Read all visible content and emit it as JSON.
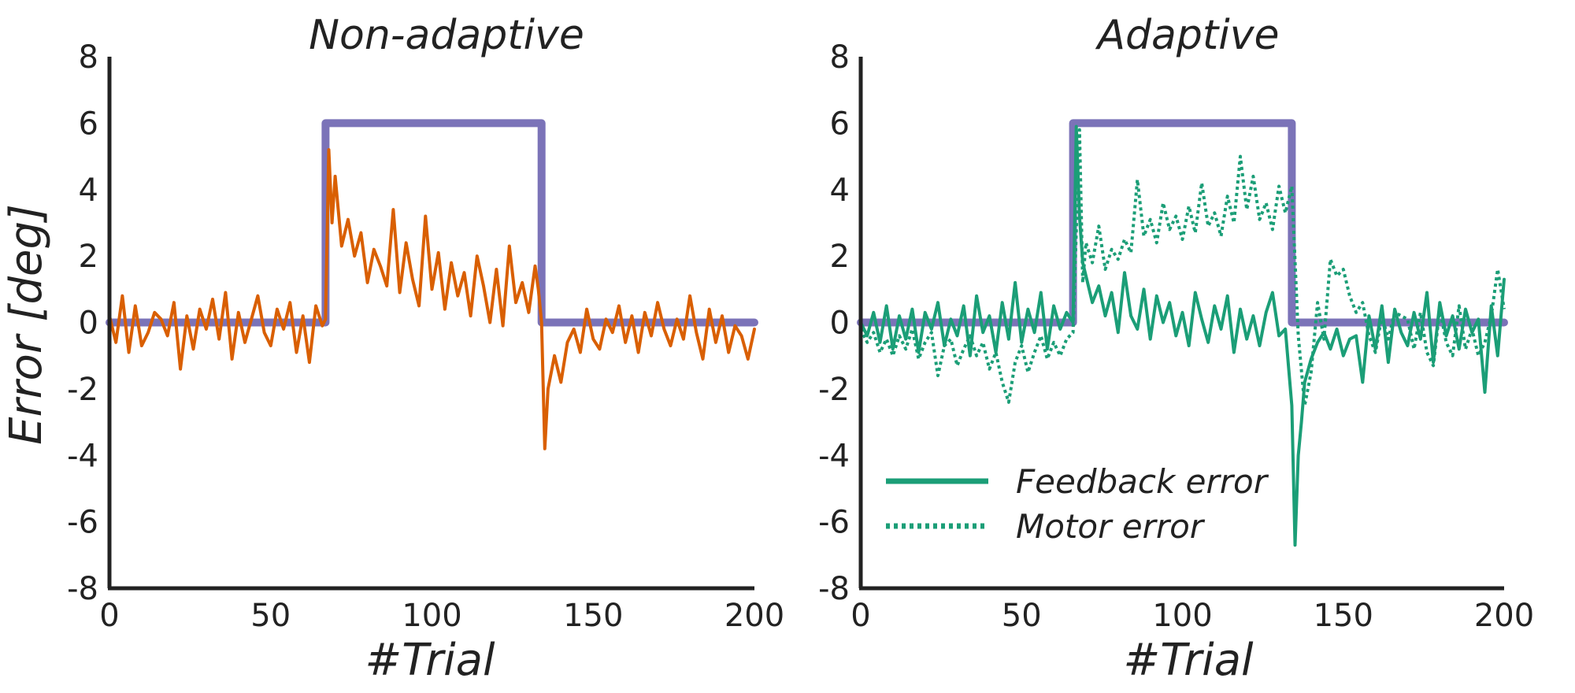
{
  "colors": {
    "stimulus": "#7b73b8",
    "nonadaptive_error": "#d95f02",
    "feedback_error": "#1b9e77",
    "motor_error": "#1b9e77"
  },
  "chart_data": [
    {
      "type": "line",
      "title": "Non-adaptive",
      "xlabel": "#Trial",
      "ylabel": "Error [deg]",
      "xlim": [
        0,
        200
      ],
      "ylim": [
        -8,
        8
      ],
      "xticks": [
        0,
        50,
        100,
        150,
        200
      ],
      "yticks": [
        -8,
        -6,
        -4,
        -2,
        0,
        2,
        4,
        6,
        8
      ],
      "grid": false,
      "series": [
        {
          "style": "solid-thick",
          "color_key": "stimulus",
          "x": [
            0,
            67,
            67,
            134,
            134,
            200
          ],
          "y": [
            0,
            0,
            6,
            6,
            0,
            0
          ]
        },
        {
          "style": "solid",
          "color_key": "nonadaptive_error",
          "x": [
            0,
            2,
            4,
            6,
            8,
            10,
            12,
            14,
            16,
            18,
            20,
            22,
            24,
            26,
            28,
            30,
            32,
            34,
            36,
            38,
            40,
            42,
            44,
            46,
            48,
            50,
            52,
            54,
            56,
            58,
            60,
            62,
            64,
            66,
            67,
            68,
            69,
            70,
            72,
            74,
            76,
            78,
            80,
            82,
            84,
            86,
            88,
            90,
            92,
            94,
            96,
            98,
            100,
            102,
            104,
            106,
            108,
            110,
            112,
            114,
            116,
            118,
            120,
            122,
            124,
            126,
            128,
            130,
            132,
            133,
            134,
            135,
            136,
            138,
            140,
            142,
            144,
            146,
            148,
            150,
            152,
            154,
            156,
            158,
            160,
            162,
            164,
            166,
            168,
            170,
            172,
            174,
            176,
            178,
            180,
            182,
            184,
            186,
            188,
            190,
            192,
            194,
            196,
            198,
            200
          ],
          "y": [
            0.2,
            -0.6,
            0.8,
            -0.9,
            0.5,
            -0.7,
            -0.3,
            0.3,
            0.1,
            -0.4,
            0.6,
            -1.4,
            0.2,
            -0.8,
            0.4,
            -0.2,
            0.7,
            -0.5,
            0.9,
            -1.1,
            0.3,
            -0.6,
            0.1,
            0.8,
            -0.3,
            -0.7,
            0.4,
            -0.2,
            0.6,
            -0.9,
            0.2,
            -1.2,
            0.5,
            -0.1,
            0.1,
            5.2,
            3.0,
            4.4,
            2.3,
            3.1,
            2.0,
            2.7,
            1.2,
            2.2,
            1.7,
            1.1,
            3.4,
            0.9,
            2.4,
            1.3,
            0.5,
            3.2,
            1.0,
            2.1,
            0.4,
            1.8,
            0.8,
            1.5,
            0.2,
            2.0,
            1.1,
            0.0,
            1.6,
            -0.1,
            2.3,
            0.6,
            1.2,
            0.3,
            1.7,
            1.0,
            0.0,
            -3.8,
            -2.0,
            -1.0,
            -1.8,
            -0.6,
            -0.2,
            -0.9,
            0.4,
            -0.5,
            -0.8,
            0.1,
            -0.3,
            0.5,
            -0.6,
            0.2,
            -0.9,
            0.3,
            -0.4,
            0.6,
            -0.2,
            -0.7,
            0.1,
            -0.5,
            0.8,
            -0.3,
            -1.1,
            0.4,
            -0.6,
            0.2,
            -0.9,
            -0.1,
            -0.4,
            -1.1,
            -0.2
          ]
        }
      ]
    },
    {
      "type": "line",
      "title": "Adaptive",
      "xlabel": "#Trial",
      "ylabel": "",
      "xlim": [
        0,
        200
      ],
      "ylim": [
        -8,
        8
      ],
      "xticks": [
        0,
        50,
        100,
        150,
        200
      ],
      "yticks": [
        -8,
        -6,
        -4,
        -2,
        0,
        2,
        4,
        6,
        8
      ],
      "grid": false,
      "legend": {
        "placement": "lower-left",
        "entries": [
          {
            "label": "Feedback error",
            "style": "solid",
            "color_key": "feedback_error"
          },
          {
            "label": "Motor error",
            "style": "dotted",
            "color_key": "motor_error"
          }
        ]
      },
      "series": [
        {
          "style": "solid-thick",
          "color_key": "stimulus",
          "x": [
            0,
            66,
            66,
            134,
            134,
            200
          ],
          "y": [
            0,
            0,
            6,
            6,
            0,
            0
          ]
        },
        {
          "name": "Feedback error",
          "style": "solid",
          "color_key": "feedback_error",
          "x": [
            0,
            2,
            4,
            6,
            8,
            10,
            12,
            14,
            16,
            18,
            20,
            22,
            24,
            26,
            28,
            30,
            32,
            34,
            36,
            38,
            40,
            42,
            44,
            46,
            48,
            50,
            52,
            54,
            56,
            58,
            60,
            62,
            64,
            66,
            67,
            68,
            69,
            70,
            72,
            74,
            76,
            78,
            80,
            82,
            84,
            86,
            88,
            90,
            92,
            94,
            96,
            98,
            100,
            102,
            104,
            106,
            108,
            110,
            112,
            114,
            116,
            118,
            120,
            122,
            124,
            126,
            128,
            130,
            132,
            134,
            135,
            136,
            137,
            138,
            140,
            142,
            144,
            146,
            148,
            150,
            152,
            154,
            156,
            158,
            160,
            162,
            164,
            166,
            168,
            170,
            172,
            174,
            176,
            178,
            180,
            182,
            184,
            186,
            188,
            190,
            192,
            194,
            196,
            198,
            200
          ],
          "y": [
            0.0,
            -0.4,
            0.3,
            -0.6,
            0.5,
            -0.8,
            0.2,
            -0.5,
            0.4,
            -0.9,
            0.3,
            -0.2,
            0.6,
            -0.7,
            0.1,
            -0.4,
            0.5,
            -1.0,
            0.8,
            -0.3,
            0.2,
            -0.9,
            0.6,
            -0.5,
            1.2,
            -0.6,
            0.4,
            -0.3,
            0.9,
            -0.8,
            0.5,
            -0.2,
            0.3,
            0.0,
            5.9,
            3.2,
            1.8,
            1.4,
            0.6,
            1.1,
            0.2,
            0.9,
            -0.3,
            1.5,
            0.2,
            -0.2,
            1.0,
            -0.5,
            0.8,
            0.0,
            0.6,
            -0.4,
            0.3,
            -0.7,
            0.9,
            0.1,
            -0.6,
            0.5,
            -0.2,
            0.8,
            -0.9,
            0.4,
            -0.5,
            0.2,
            -0.7,
            0.3,
            0.9,
            -0.4,
            -0.2,
            -2.5,
            -6.7,
            -4.0,
            -3.0,
            -1.8,
            -1.1,
            -0.6,
            -0.3,
            -0.8,
            -0.2,
            -1.0,
            -0.5,
            -0.4,
            -1.8,
            0.2,
            -0.8,
            0.5,
            -1.2,
            0.4,
            -0.3,
            -0.7,
            0.3,
            -0.5,
            0.9,
            -1.2,
            0.6,
            -0.4,
            0.2,
            -0.8,
            0.4,
            -0.3,
            0.1,
            -2.1,
            0.5,
            -1.0,
            1.3
          ]
        },
        {
          "name": "Motor error",
          "style": "dotted",
          "color_key": "motor_error",
          "x": [
            0,
            2,
            4,
            6,
            8,
            10,
            12,
            14,
            16,
            18,
            20,
            22,
            24,
            26,
            28,
            30,
            32,
            34,
            36,
            38,
            40,
            42,
            44,
            46,
            48,
            50,
            52,
            54,
            56,
            58,
            60,
            62,
            64,
            66,
            68,
            69,
            70,
            72,
            74,
            76,
            78,
            80,
            82,
            84,
            86,
            88,
            90,
            92,
            94,
            96,
            98,
            100,
            102,
            104,
            106,
            108,
            110,
            112,
            114,
            116,
            118,
            120,
            122,
            124,
            126,
            128,
            130,
            132,
            134,
            136,
            138,
            140,
            142,
            144,
            146,
            148,
            150,
            152,
            154,
            156,
            158,
            160,
            162,
            164,
            166,
            168,
            170,
            172,
            174,
            176,
            178,
            180,
            182,
            184,
            186,
            188,
            190,
            192,
            194,
            196,
            198,
            200
          ],
          "y": [
            -0.2,
            -0.6,
            -0.3,
            -0.9,
            -0.5,
            -1.0,
            -0.4,
            -0.8,
            -0.2,
            -1.1,
            -0.6,
            -0.3,
            -1.6,
            -0.7,
            -0.5,
            -1.3,
            -0.8,
            -0.4,
            -1.0,
            -0.6,
            -1.4,
            -0.9,
            -1.8,
            -2.4,
            -1.2,
            -0.7,
            -1.5,
            -0.9,
            -0.4,
            -1.1,
            -0.6,
            -1.0,
            -0.5,
            -0.3,
            5.8,
            1.2,
            2.4,
            1.8,
            2.9,
            1.6,
            2.2,
            1.9,
            2.5,
            2.1,
            4.3,
            2.6,
            3.1,
            2.4,
            3.6,
            2.8,
            3.2,
            2.5,
            3.5,
            2.7,
            4.2,
            2.9,
            3.3,
            2.6,
            3.8,
            3.0,
            5.0,
            3.4,
            4.4,
            3.1,
            3.6,
            2.8,
            4.1,
            3.3,
            4.1,
            -0.4,
            -2.5,
            -1.5,
            0.6,
            -0.5,
            1.9,
            1.4,
            1.6,
            0.8,
            0.3,
            0.6,
            -0.4,
            -0.9,
            0.2,
            -0.5,
            0.3,
            0.2,
            0.1,
            -0.8,
            0.3,
            -0.9,
            -1.3,
            0.4,
            -0.6,
            -1.0,
            0.5,
            -0.8,
            -0.2,
            -1.0,
            -0.6,
            0.2,
            1.6,
            0.4
          ]
        }
      ]
    }
  ]
}
